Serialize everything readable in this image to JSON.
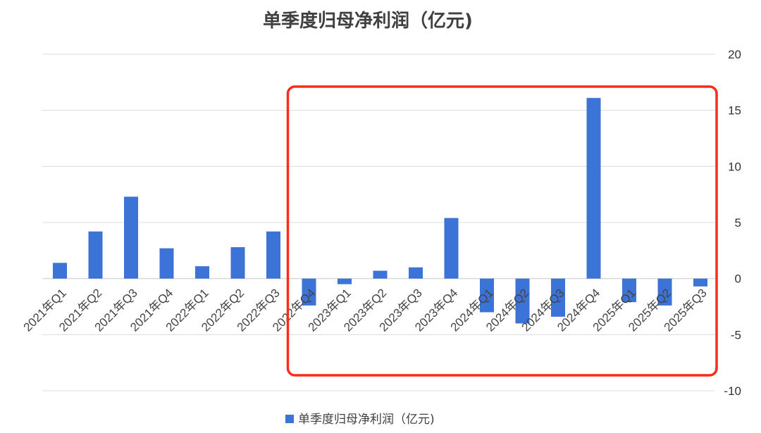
{
  "chart_data": {
    "type": "bar",
    "title": "单季度归母净利润（亿元)",
    "categories": [
      "2021年Q1",
      "2021年Q2",
      "2021年Q3",
      "2021年Q4",
      "2022年Q1",
      "2022年Q2",
      "2022年Q3",
      "2022年Q4",
      "2023年Q1",
      "2023年Q2",
      "2023年Q3",
      "2023年Q4",
      "2024年Q1",
      "2024年Q2",
      "2024年Q3",
      "2024年Q4",
      "2025年Q1",
      "2025年Q2",
      "2025年Q3"
    ],
    "series": [
      {
        "name": "单季度归母净利润（亿元)",
        "color": "#3c73d6",
        "values": [
          1.4,
          4.2,
          7.3,
          2.7,
          1.1,
          2.8,
          4.2,
          -2.4,
          -0.5,
          0.7,
          1.0,
          5.4,
          -3.0,
          -4.0,
          -3.4,
          16.1,
          -2.1,
          -2.4,
          -0.7
        ]
      }
    ],
    "ylim": [
      -10,
      20
    ],
    "yticks": [
      -10,
      -5,
      0,
      5,
      10,
      15,
      20
    ],
    "y_axis_side": "right",
    "grid": true,
    "legend_position": "bottom",
    "annotation": {
      "type": "highlight-box",
      "color": "#ff2a1a",
      "from_category": "2022年Q4",
      "to_category": "2025年Q3"
    }
  }
}
